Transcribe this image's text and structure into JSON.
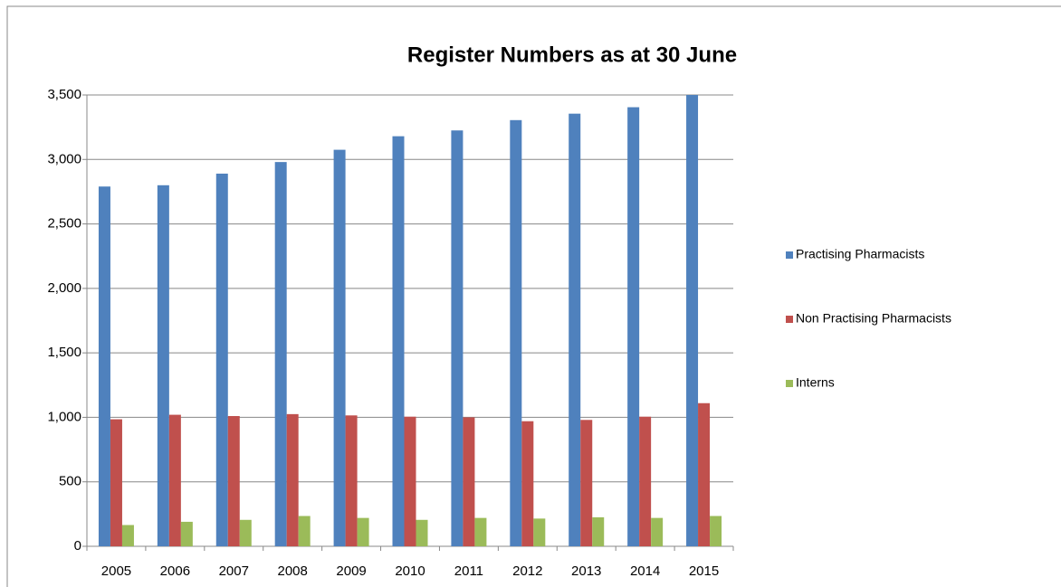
{
  "chart_data": {
    "type": "bar",
    "title": "Register Numbers as at 30 June",
    "categories": [
      "2005",
      "2006",
      "2007",
      "2008",
      "2009",
      "2010",
      "2011",
      "2012",
      "2013",
      "2014",
      "2015"
    ],
    "series": [
      {
        "name": "Practising Pharmacists",
        "color": "#4f81bd",
        "values": [
          2790,
          2800,
          2890,
          2980,
          3075,
          3180,
          3225,
          3305,
          3355,
          3405,
          3500
        ]
      },
      {
        "name": "Non Practising Pharmacists",
        "color": "#c0504d",
        "values": [
          985,
          1020,
          1010,
          1025,
          1015,
          1005,
          1000,
          970,
          980,
          1005,
          1110
        ]
      },
      {
        "name": "Interns",
        "color": "#9bbb59",
        "values": [
          165,
          190,
          205,
          235,
          220,
          205,
          220,
          215,
          225,
          220,
          235
        ]
      }
    ],
    "ylim": [
      0,
      3500
    ],
    "yticks": [
      0,
      500,
      {
        "value": 1000,
        "label": "1,000"
      },
      {
        "value": 1500,
        "label": "1,500"
      },
      {
        "value": 2000,
        "label": "2,000"
      },
      {
        "value": 2500,
        "label": "2,500"
      },
      {
        "value": 3000,
        "label": "3,000"
      },
      {
        "value": 3500,
        "label": "3,500"
      }
    ],
    "grid": true,
    "legend": "right"
  }
}
